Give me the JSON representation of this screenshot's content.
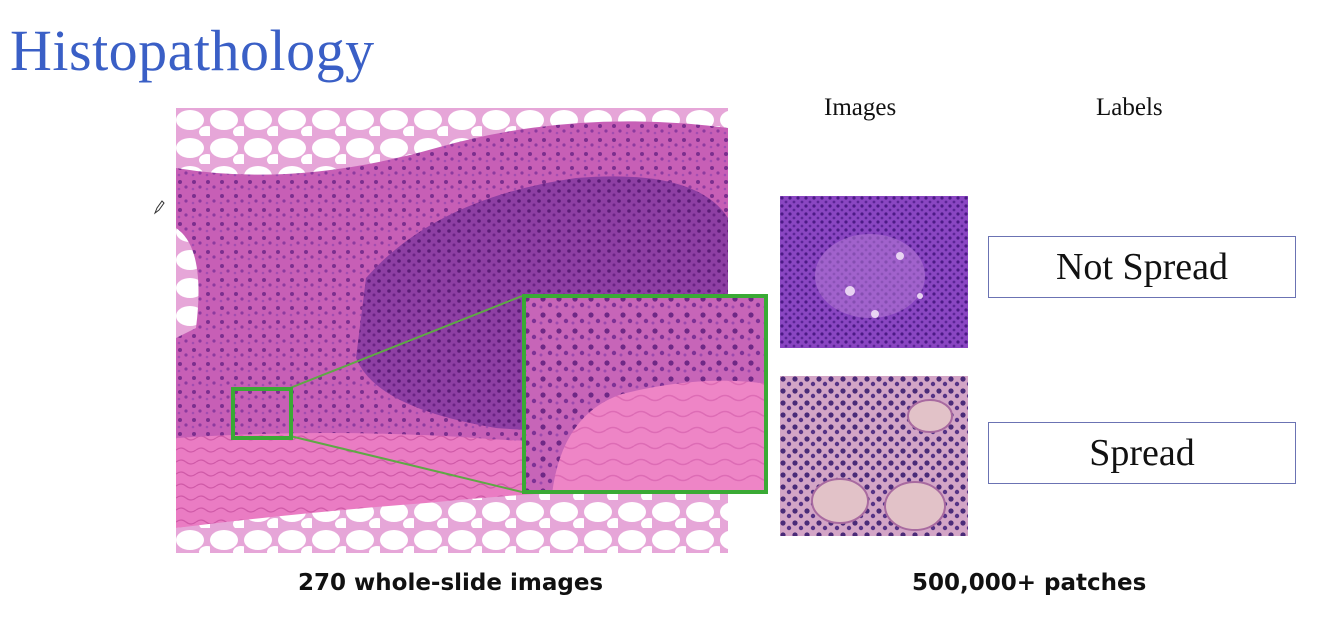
{
  "slide": {
    "title": "Histopathology",
    "columns": {
      "images": "Images",
      "labels": "Labels"
    },
    "labels": [
      "Not Spread",
      "Spread"
    ],
    "captions": {
      "left": "270 whole-slide images",
      "right": "500,000+ patches"
    }
  },
  "colors": {
    "title": "#3a5fc6",
    "highlight_box": "#3aaa35",
    "label_border": "#6b73b3",
    "tissue_pink": "#e070b8",
    "tissue_purple": "#8a3aa0"
  },
  "icons": [
    "pen-cursor-icon"
  ]
}
